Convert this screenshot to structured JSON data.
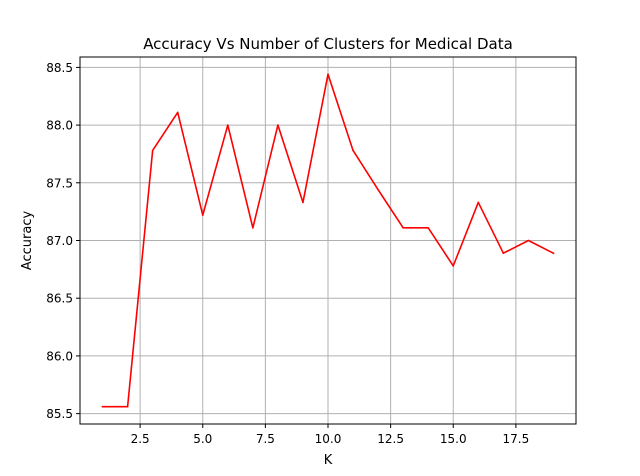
{
  "chart_data": {
    "type": "line",
    "title": "Accuracy Vs Number of Clusters for Medical Data",
    "xlabel": "K",
    "ylabel": "Accuracy",
    "xlim": [
      0.1,
      19.9
    ],
    "ylim": [
      85.41,
      88.59
    ],
    "grid": true,
    "x_ticks": [
      2.5,
      5.0,
      7.5,
      10.0,
      12.5,
      15.0,
      17.5
    ],
    "x_tick_labels": [
      "2.5",
      "5.0",
      "7.5",
      "10.0",
      "12.5",
      "15.0",
      "17.5"
    ],
    "y_ticks": [
      85.5,
      86.0,
      86.5,
      87.0,
      87.5,
      88.0,
      88.5
    ],
    "y_tick_labels": [
      "85.5",
      "86.0",
      "86.5",
      "87.0",
      "87.5",
      "88.0",
      "88.5"
    ],
    "series": [
      {
        "color": "#ff0000",
        "x": [
          1,
          2,
          3,
          4,
          5,
          6,
          7,
          8,
          9,
          10,
          11,
          12,
          13,
          14,
          15,
          16,
          17,
          18,
          19
        ],
        "values": [
          85.56,
          85.56,
          87.78,
          88.11,
          87.22,
          88.0,
          87.11,
          88.0,
          87.33,
          88.44,
          87.78,
          87.44,
          87.11,
          87.11,
          86.78,
          87.33,
          86.89,
          87.0,
          86.89
        ]
      }
    ]
  }
}
